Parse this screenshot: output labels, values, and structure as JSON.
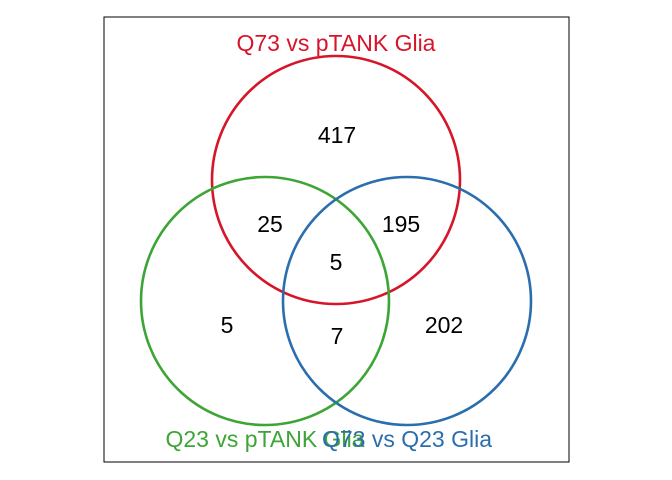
{
  "diagram": {
    "type": "venn-3",
    "sets": [
      {
        "name": "Q73 vs pTANK Glia",
        "color": "#D7152A"
      },
      {
        "name": "Q23 vs pTANK Glia",
        "color": "#3DA535"
      },
      {
        "name": "Q73 vs Q23 Glia",
        "color": "#2A6EAE"
      }
    ],
    "counts": {
      "q73_ptank_only": "417",
      "q23_ptank_only": "5",
      "q73_q23_only": "202",
      "q73_ptank_and_q23_ptank": "25",
      "q73_ptank_and_q73_q23": "195",
      "q23_ptank_and_q73_q23": "7",
      "all_three": "5"
    }
  }
}
